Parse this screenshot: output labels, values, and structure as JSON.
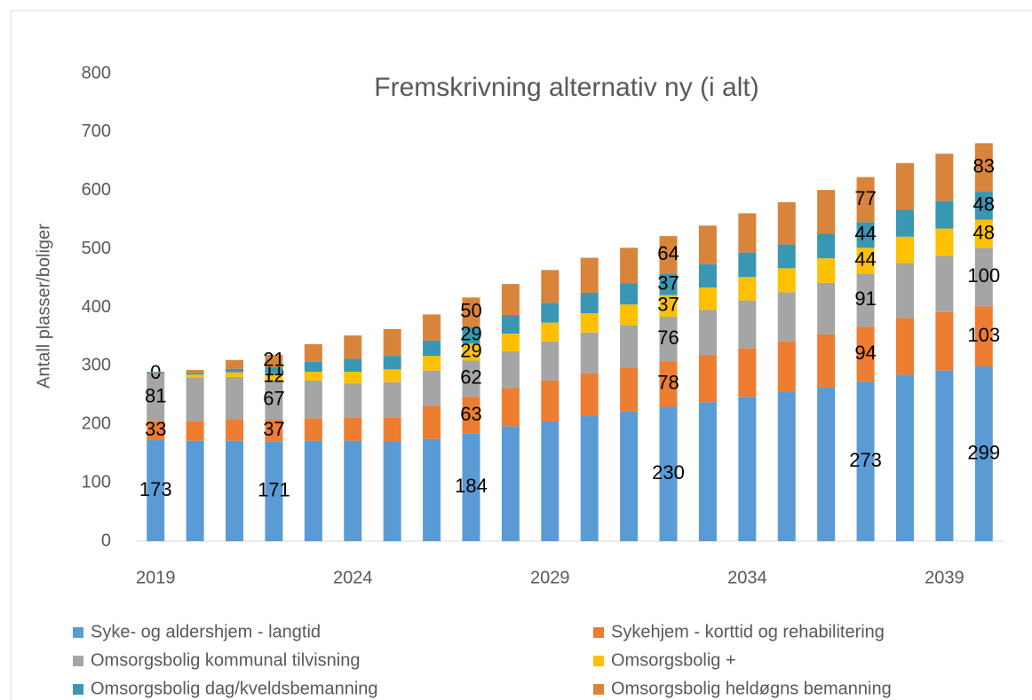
{
  "chart_data": {
    "type": "stacked_bar",
    "title": "Fremskrivning alternativ ny (i alt)",
    "y_label": "Antall plasser/boliger",
    "categories": [
      "2019",
      null,
      null,
      null,
      null,
      "2024",
      null,
      null,
      null,
      null,
      "2029",
      null,
      null,
      null,
      null,
      "2034",
      null,
      null,
      null,
      null,
      "2039",
      null
    ],
    "ylim": [
      0,
      800
    ],
    "yticks": [
      0,
      100,
      200,
      300,
      400,
      500,
      600,
      700,
      800
    ],
    "grid": false,
    "legend": "bottom",
    "series": [
      {
        "name": "Syke- og aldershjem - langtid",
        "color": "#5b9bd5",
        "values": [
          173,
          172,
          172,
          171,
          172,
          172,
          170,
          175,
          184,
          197,
          205,
          214,
          222,
          230,
          238,
          247,
          255,
          264,
          273,
          285,
          292,
          299
        ],
        "value_labels": [
          "173",
          null,
          null,
          "171",
          null,
          null,
          null,
          null,
          "184",
          null,
          null,
          null,
          null,
          "230",
          null,
          null,
          null,
          null,
          "273",
          null,
          null,
          "299"
        ]
      },
      {
        "name": "Sykehjem - korttid og rehabilitering",
        "color": "#ed7d31",
        "values": [
          33,
          33,
          37,
          37,
          38,
          40,
          42,
          57,
          63,
          65,
          70,
          73,
          75,
          78,
          80,
          83,
          87,
          90,
          94,
          97,
          100,
          103
        ],
        "value_labels": [
          "33",
          null,
          null,
          "37",
          null,
          null,
          null,
          null,
          "63",
          null,
          null,
          null,
          null,
          "78",
          null,
          null,
          null,
          null,
          "94",
          null,
          null,
          "103"
        ]
      },
      {
        "name": "Omsorgsbolig kommunal tilvisning",
        "color": "#a5a5a5",
        "values": [
          81,
          75,
          72,
          67,
          65,
          58,
          60,
          60,
          62,
          63,
          67,
          70,
          73,
          76,
          78,
          82,
          84,
          88,
          91,
          94,
          96,
          100
        ],
        "value_labels": [
          "81",
          null,
          null,
          "67",
          null,
          null,
          null,
          null,
          "62",
          null,
          null,
          null,
          null,
          "76",
          null,
          null,
          null,
          null,
          "91",
          null,
          null,
          "100"
        ]
      },
      {
        "name": "Omsorgsbolig +",
        "color": "#ffc000",
        "values": [
          0,
          5,
          8,
          12,
          15,
          20,
          22,
          25,
          29,
          30,
          32,
          33,
          35,
          37,
          38,
          40,
          41,
          42,
          44,
          45,
          47,
          48
        ],
        "value_labels": [
          "0",
          null,
          null,
          "12",
          null,
          null,
          null,
          null,
          "29",
          null,
          null,
          null,
          null,
          "37",
          null,
          null,
          null,
          null,
          "44",
          null,
          null,
          "48"
        ]
      },
      {
        "name": "Omsorgsbolig dag/kveldsbemanning",
        "color": "#3a97b3",
        "values": [
          2,
          3,
          6,
          11,
          17,
          22,
          23,
          26,
          29,
          32,
          34,
          35,
          36,
          37,
          40,
          42,
          41,
          42,
          44,
          46,
          47,
          48
        ],
        "value_labels": [
          null,
          null,
          null,
          "11",
          null,
          null,
          null,
          null,
          "29",
          null,
          null,
          null,
          null,
          "37",
          null,
          null,
          null,
          null,
          "44",
          null,
          null,
          "48"
        ]
      },
      {
        "name": "Omsorgsbolig heldøgns bemanning",
        "color": "#d9843b",
        "values": [
          1,
          5,
          15,
          21,
          30,
          40,
          46,
          45,
          50,
          53,
          56,
          60,
          61,
          64,
          66,
          67,
          72,
          75,
          77,
          80,
          81,
          83
        ],
        "value_labels": [
          null,
          null,
          null,
          "21",
          null,
          null,
          null,
          null,
          "50",
          null,
          null,
          null,
          null,
          "64",
          null,
          null,
          null,
          null,
          "77",
          null,
          null,
          "83"
        ]
      }
    ]
  }
}
